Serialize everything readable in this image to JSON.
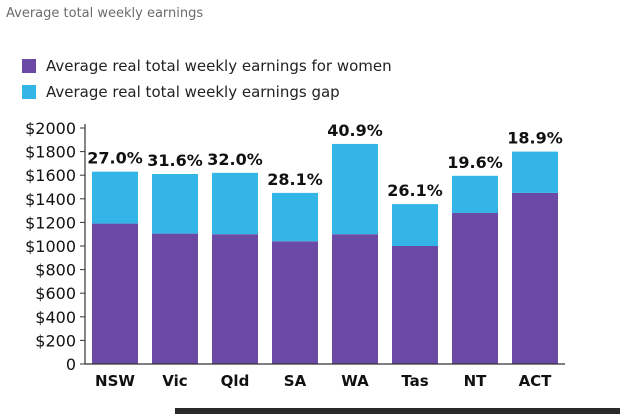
{
  "page": {
    "title": "Average total weekly earnings"
  },
  "colors": {
    "women": "#6a4aa5",
    "gap": "#33b5e8",
    "axis": "#333333",
    "footer": "#2a2a2a"
  },
  "chart_data": {
    "type": "bar",
    "stacked": true,
    "title": "",
    "xlabel": "",
    "ylabel": "",
    "ylim": [
      0,
      2000
    ],
    "yticks": [
      0,
      200,
      400,
      600,
      800,
      1000,
      1200,
      1400,
      1600,
      1800,
      2000
    ],
    "ytick_labels": [
      "0",
      "$200",
      "$400",
      "$600",
      "$800",
      "$1000",
      "$1200",
      "$1400",
      "$1600",
      "$1800",
      "$2000"
    ],
    "grid": false,
    "legend_position": "top-left",
    "categories": [
      "NSW",
      "Vic",
      "Qld",
      "SA",
      "WA",
      "Tas",
      "NT",
      "ACT"
    ],
    "series": [
      {
        "name": "Average real total weekly earnings for women",
        "values": [
          1190,
          1105,
          1100,
          1040,
          1100,
          1000,
          1280,
          1450
        ]
      },
      {
        "name": "Average real total weekly earnings gap",
        "values": [
          440,
          505,
          520,
          410,
          765,
          355,
          315,
          350
        ]
      }
    ],
    "data_labels": [
      "27.0%",
      "31.6%",
      "32.0%",
      "28.1%",
      "40.9%",
      "26.1%",
      "19.6%",
      "18.9%"
    ]
  }
}
